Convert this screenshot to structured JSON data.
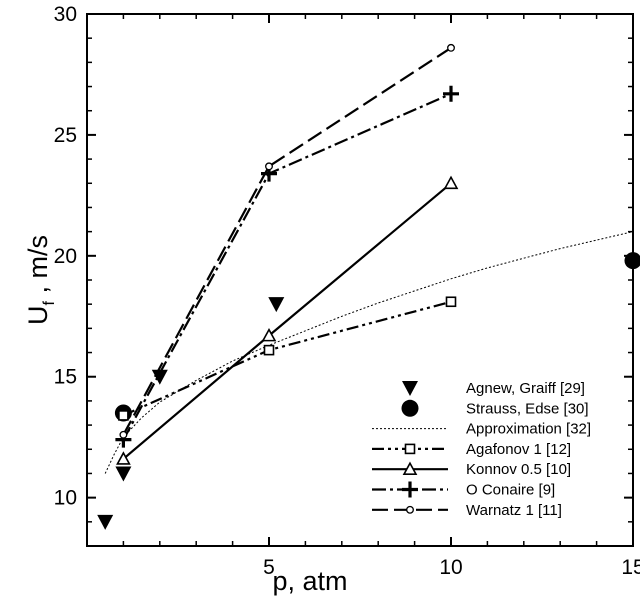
{
  "chart_data": {
    "type": "line",
    "title": "",
    "xlabel": "p, atm",
    "ylabel_main": "U",
    "ylabel_sub": "f",
    "ylabel_rest": " , m/s",
    "xlim": [
      0,
      15
    ],
    "ylim": [
      8,
      30
    ],
    "xticks": [
      5,
      10,
      15
    ],
    "xtick_labels": [
      "5",
      "10",
      "15"
    ],
    "yticks": [
      10,
      15,
      20,
      25,
      30
    ],
    "ytick_labels": [
      "10",
      "15",
      "20",
      "25",
      "30"
    ],
    "grid": false,
    "legend_position": "bottom-right",
    "series": [
      {
        "name": "Agnew, Graiff [29]",
        "style": "marker-only",
        "marker": "triangle-down",
        "x": [
          0.5,
          1,
          2,
          5.2
        ],
        "y": [
          9,
          11,
          15,
          18
        ]
      },
      {
        "name": "Strauss, Edse [30]",
        "style": "marker-only",
        "marker": "circle-filled",
        "x": [
          1,
          15
        ],
        "y": [
          13.5,
          19.8
        ]
      },
      {
        "name": "Approximation [32]",
        "style": "dotted",
        "marker": "none",
        "x": [
          0.5,
          0.75,
          1,
          1.5,
          2,
          3,
          4,
          5,
          6,
          7,
          8,
          9,
          10,
          11,
          12,
          13,
          14,
          15
        ],
        "y": [
          11.0,
          11.8,
          12.5,
          13.3,
          13.95,
          14.85,
          15.65,
          16.3,
          16.9,
          17.5,
          18.05,
          18.55,
          19.05,
          19.5,
          19.9,
          20.3,
          20.65,
          21.0
        ]
      },
      {
        "name": "Agafonov 1 [12]",
        "style": "dash-dot-dot",
        "marker": "open-square",
        "x": [
          1,
          5,
          10
        ],
        "y": [
          13.4,
          16.1,
          18.1
        ]
      },
      {
        "name": "Konnov 0.5 [10]",
        "style": "solid",
        "marker": "open-triangle",
        "x": [
          1,
          5,
          10
        ],
        "y": [
          11.6,
          16.7,
          23.0
        ]
      },
      {
        "name": "O Conaire [9]",
        "style": "dash-dot",
        "marker": "plus",
        "x": [
          1,
          5,
          10
        ],
        "y": [
          12.4,
          23.4,
          26.7
        ]
      },
      {
        "name": "Warnatz 1 [11]",
        "style": "long-dash",
        "marker": "open-circle",
        "x": [
          1,
          5,
          10
        ],
        "y": [
          12.6,
          23.7,
          28.6
        ]
      }
    ]
  }
}
